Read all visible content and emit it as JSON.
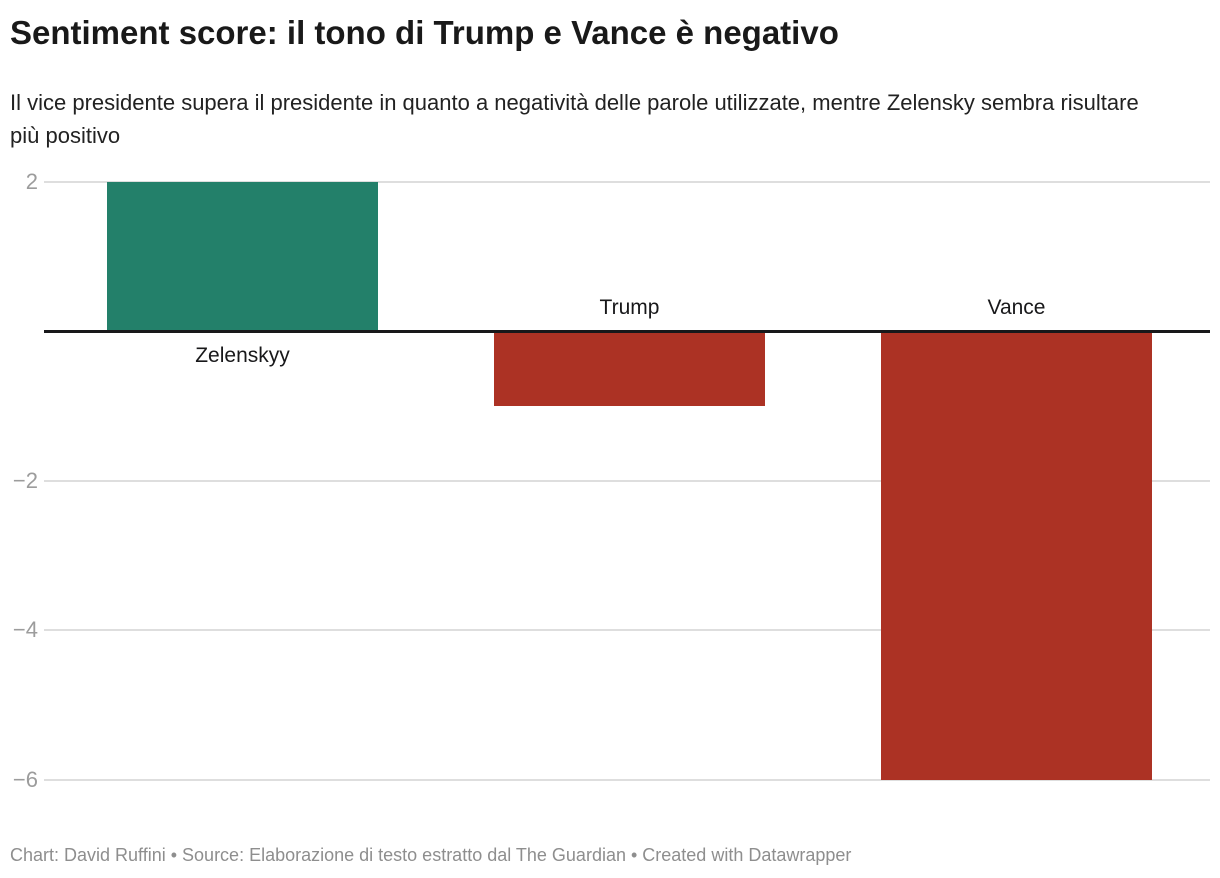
{
  "header": {
    "title": "Sentiment score: il tono di Trump e Vance è negativo",
    "subtitle": "Il vice presidente supera il presidente in quanto a negatività delle parole utilizzate, mentre Zelensky sembra risultare più positivo"
  },
  "footer": {
    "text": "Chart: David Ruffini • Source: Elaborazione di testo estratto dal The Guardian • Created with Datawrapper"
  },
  "chart_data": {
    "type": "bar",
    "title": "Sentiment score: il tono di Trump e Vance è negativo",
    "subtitle": "Il vice presidente supera il presidente in quanto a negatività delle parole utilizzate, mentre Zelensky sembra risultare più positivo",
    "categories": [
      "Zelenskyy",
      "Trump",
      "Vance"
    ],
    "values": [
      2,
      -1,
      -6
    ],
    "xlabel": "",
    "ylabel": "",
    "ylim": [
      -6,
      2
    ],
    "y_ticks": [
      2,
      -2,
      -4,
      -6
    ],
    "y_tick_labels": [
      "2",
      "−2",
      "−4",
      "−6"
    ],
    "grid": true,
    "legend": "none",
    "positive_color": "#23806a",
    "negative_color": "#ac3224",
    "zero_line_color": "#18181a",
    "gridline_color": "#dedede",
    "tick_label_color": "#9c9c9c"
  }
}
